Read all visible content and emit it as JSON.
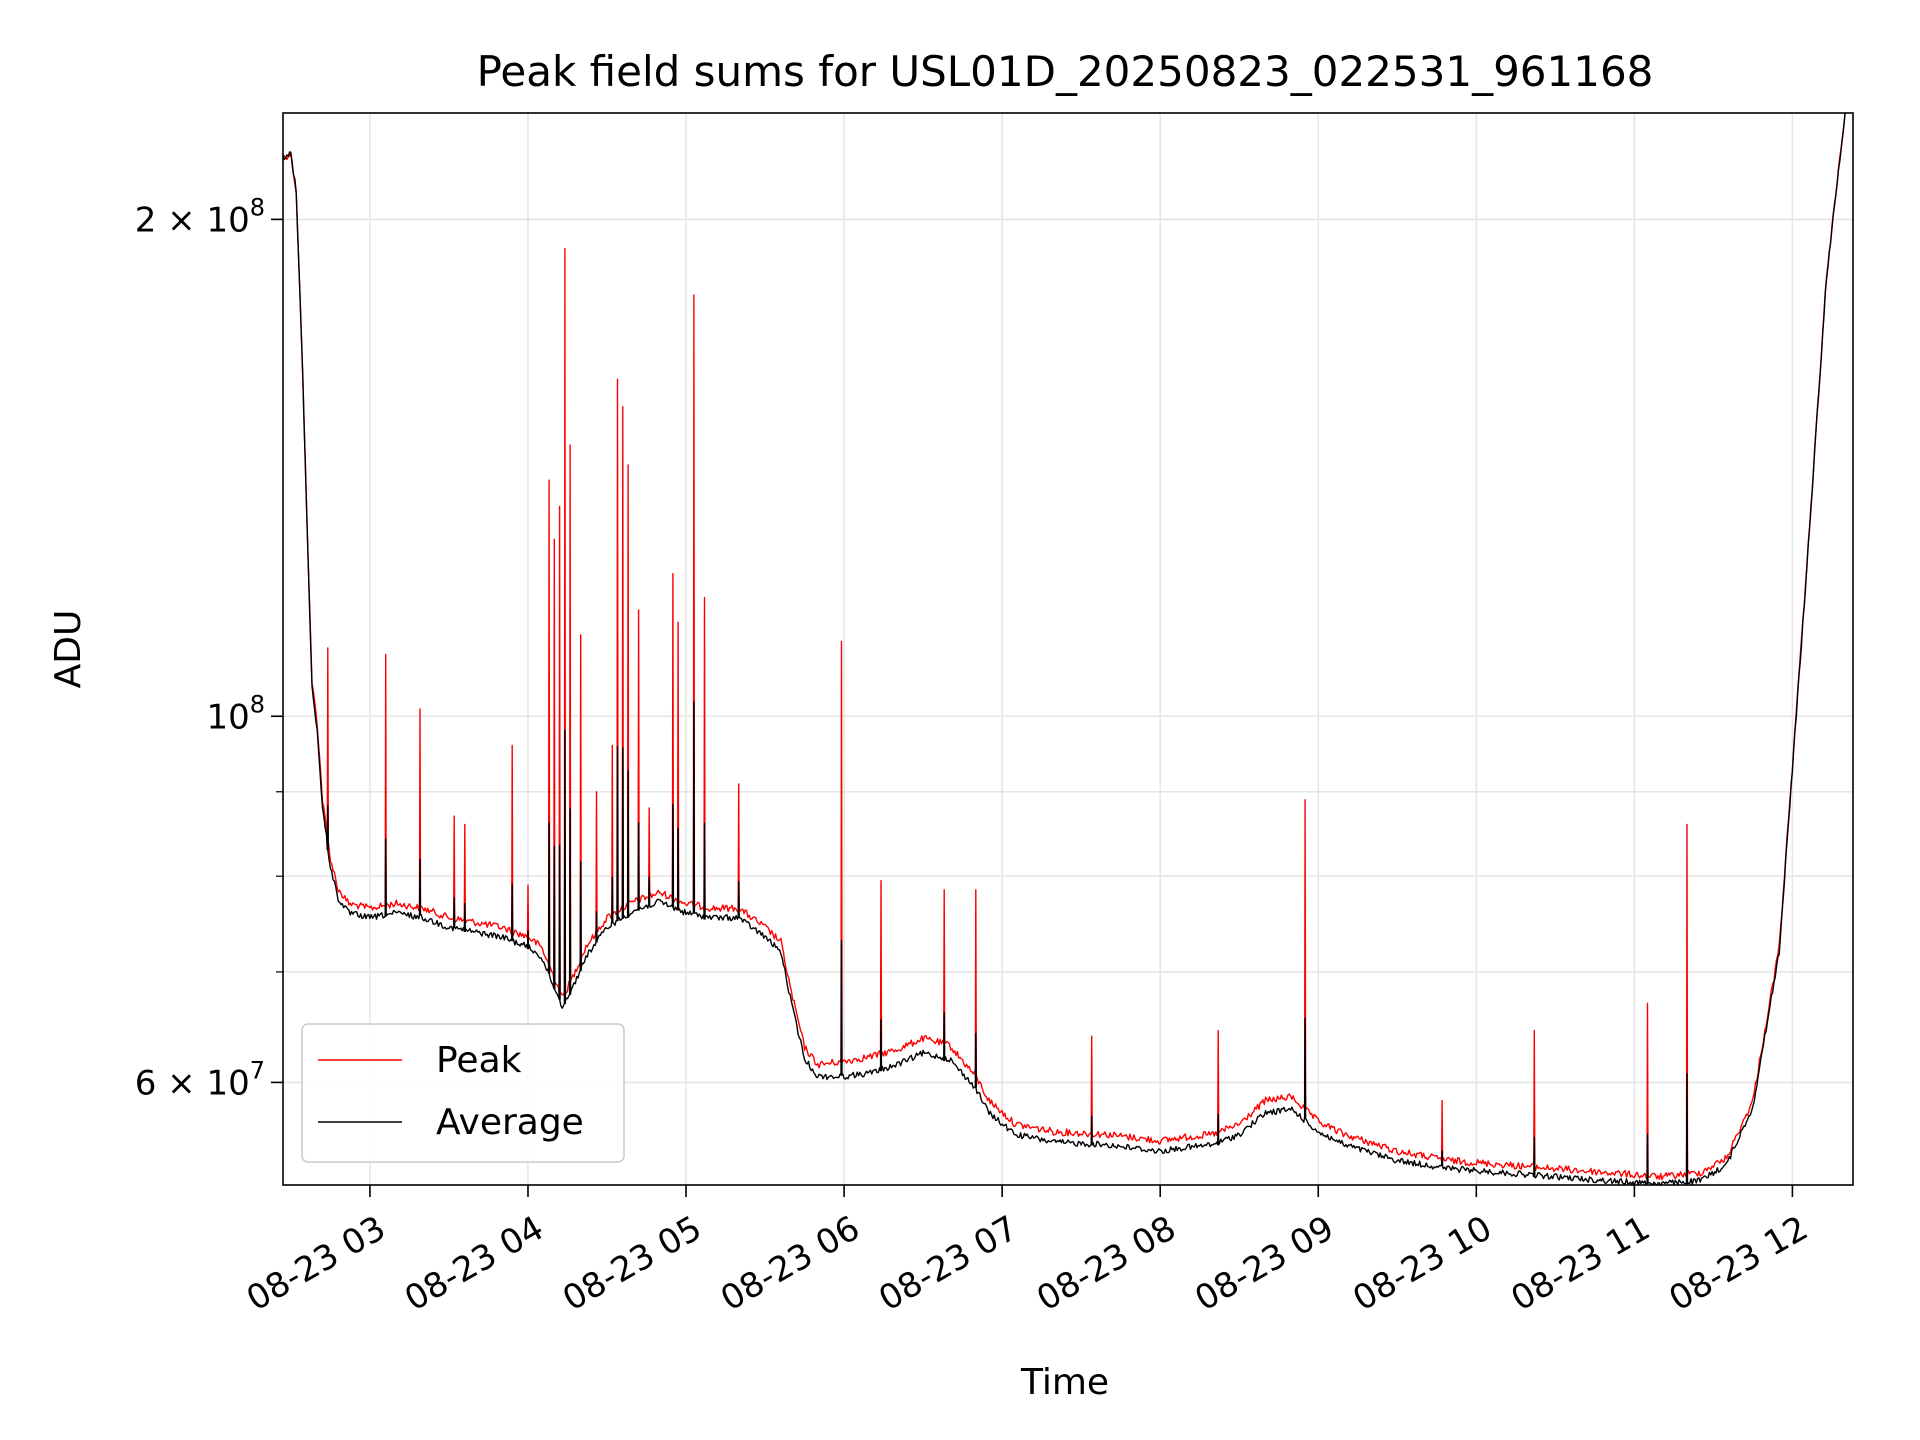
{
  "chart_data": {
    "type": "line",
    "title": "Peak field sums for USL01D_20250823_022531_961168",
    "xlabel": "Time",
    "ylabel": "ADU",
    "yscale": "log",
    "xlim": [
      "2025-08-23 02:27",
      "2025-08-23 12:23"
    ],
    "ylim": [
      52000000,
      232000000
    ],
    "grid": true,
    "legend": {
      "placement": "lower-left",
      "entries": [
        "Peak",
        "Average"
      ]
    },
    "x_ticks": [
      {
        "t": "2025-08-23 03:00",
        "label": "08-23 03"
      },
      {
        "t": "2025-08-23 04:00",
        "label": "08-23 04"
      },
      {
        "t": "2025-08-23 05:00",
        "label": "08-23 05"
      },
      {
        "t": "2025-08-23 06:00",
        "label": "08-23 06"
      },
      {
        "t": "2025-08-23 07:00",
        "label": "08-23 07"
      },
      {
        "t": "2025-08-23 08:00",
        "label": "08-23 08"
      },
      {
        "t": "2025-08-23 09:00",
        "label": "08-23 09"
      },
      {
        "t": "2025-08-23 10:00",
        "label": "08-23 10"
      },
      {
        "t": "2025-08-23 11:00",
        "label": "08-23 11"
      },
      {
        "t": "2025-08-23 12:00",
        "label": "08-23 12"
      }
    ],
    "y_major_ticks": [
      {
        "value": 100000000,
        "base": "10",
        "exp": "8"
      },
      {
        "value": 200000000,
        "mant": "2",
        "base": "10",
        "exp": "8"
      },
      {
        "value": 60000000,
        "mant": "6",
        "base": "10",
        "exp": "7"
      }
    ],
    "y_minor_ticks": [
      60000000,
      70000000,
      80000000,
      90000000,
      200000000
    ],
    "colors": {
      "Peak": "#ff0000",
      "Average": "#000000"
    },
    "series": [
      {
        "name": "Average",
        "color": "#000000",
        "points": [
          [
            "2025-08-23 02:27",
            218000000
          ],
          [
            "2025-08-23 02:30",
            219000000
          ],
          [
            "2025-08-23 02:32",
            208000000
          ],
          [
            "2025-08-23 02:34",
            170000000
          ],
          [
            "2025-08-23 02:37",
            118000000
          ],
          [
            "2025-08-23 02:38",
            104000000
          ],
          [
            "2025-08-23 02:40",
            98000000
          ],
          [
            "2025-08-23 02:42",
            88000000
          ],
          [
            "2025-08-23 02:45",
            81000000
          ],
          [
            "2025-08-23 02:48",
            77500000
          ],
          [
            "2025-08-23 02:52",
            76000000
          ],
          [
            "2025-08-23 03:00",
            75500000
          ],
          [
            "2025-08-23 03:10",
            76000000
          ],
          [
            "2025-08-23 03:20",
            75500000
          ],
          [
            "2025-08-23 03:30",
            74500000
          ],
          [
            "2025-08-23 03:40",
            74000000
          ],
          [
            "2025-08-23 03:50",
            73500000
          ],
          [
            "2025-08-23 04:00",
            72500000
          ],
          [
            "2025-08-23 04:05",
            71500000
          ],
          [
            "2025-08-23 04:10",
            68500000
          ],
          [
            "2025-08-23 04:13",
            66700000
          ],
          [
            "2025-08-23 04:17",
            68500000
          ],
          [
            "2025-08-23 04:22",
            71500000
          ],
          [
            "2025-08-23 04:30",
            74500000
          ],
          [
            "2025-08-23 04:40",
            76200000
          ],
          [
            "2025-08-23 04:50",
            77200000
          ],
          [
            "2025-08-23 05:00",
            76000000
          ],
          [
            "2025-08-23 05:10",
            75500000
          ],
          [
            "2025-08-23 05:20",
            75500000
          ],
          [
            "2025-08-23 05:30",
            73500000
          ],
          [
            "2025-08-23 05:36",
            72000000
          ],
          [
            "2025-08-23 05:40",
            67000000
          ],
          [
            "2025-08-23 05:45",
            62000000
          ],
          [
            "2025-08-23 05:50",
            60500000
          ],
          [
            "2025-08-23 06:00",
            60500000
          ],
          [
            "2025-08-23 06:10",
            60800000
          ],
          [
            "2025-08-23 06:20",
            61500000
          ],
          [
            "2025-08-23 06:30",
            62500000
          ],
          [
            "2025-08-23 06:40",
            62000000
          ],
          [
            "2025-08-23 06:50",
            59500000
          ],
          [
            "2025-08-23 06:55",
            57500000
          ],
          [
            "2025-08-23 07:05",
            55800000
          ],
          [
            "2025-08-23 07:20",
            55200000
          ],
          [
            "2025-08-23 07:40",
            55000000
          ],
          [
            "2025-08-23 08:00",
            54500000
          ],
          [
            "2025-08-23 08:10",
            54800000
          ],
          [
            "2025-08-23 08:20",
            55000000
          ],
          [
            "2025-08-23 08:30",
            55800000
          ],
          [
            "2025-08-23 08:40",
            57500000
          ],
          [
            "2025-08-23 08:50",
            57800000
          ],
          [
            "2025-08-23 09:00",
            56000000
          ],
          [
            "2025-08-23 09:10",
            55000000
          ],
          [
            "2025-08-23 09:30",
            53800000
          ],
          [
            "2025-08-23 09:50",
            53200000
          ],
          [
            "2025-08-23 10:10",
            52900000
          ],
          [
            "2025-08-23 10:30",
            52600000
          ],
          [
            "2025-08-23 10:50",
            52300000
          ],
          [
            "2025-08-23 11:10",
            52100000
          ],
          [
            "2025-08-23 11:25",
            52300000
          ],
          [
            "2025-08-23 11:35",
            53500000
          ],
          [
            "2025-08-23 11:45",
            58000000
          ],
          [
            "2025-08-23 11:55",
            72000000
          ],
          [
            "2025-08-23 12:05",
            120000000
          ],
          [
            "2025-08-23 12:13",
            185000000
          ],
          [
            "2025-08-23 12:20",
            232000000
          ]
        ]
      },
      {
        "name": "Peak",
        "color": "#ff0000",
        "points": [
          [
            "2025-08-23 02:27",
            218000000
          ],
          [
            "2025-08-23 02:30",
            219000000
          ],
          [
            "2025-08-23 02:32",
            208000000
          ],
          [
            "2025-08-23 02:34",
            170000000
          ],
          [
            "2025-08-23 02:37",
            118000000
          ],
          [
            "2025-08-23 02:38",
            105000000
          ],
          [
            "2025-08-23 02:40",
            99000000
          ],
          [
            "2025-08-23 02:42",
            89000000
          ],
          [
            "2025-08-23 02:45",
            82000000
          ],
          [
            "2025-08-23 02:48",
            78500000
          ],
          [
            "2025-08-23 02:52",
            77000000
          ],
          [
            "2025-08-23 03:00",
            76500000
          ],
          [
            "2025-08-23 03:10",
            77000000
          ],
          [
            "2025-08-23 03:20",
            76500000
          ],
          [
            "2025-08-23 03:30",
            75500000
          ],
          [
            "2025-08-23 03:40",
            75000000
          ],
          [
            "2025-08-23 03:50",
            74500000
          ],
          [
            "2025-08-23 04:00",
            73500000
          ],
          [
            "2025-08-23 04:05",
            72500000
          ],
          [
            "2025-08-23 04:10",
            69500000
          ],
          [
            "2025-08-23 04:13",
            67500000
          ],
          [
            "2025-08-23 04:17",
            69500000
          ],
          [
            "2025-08-23 04:22",
            72500000
          ],
          [
            "2025-08-23 04:30",
            75500000
          ],
          [
            "2025-08-23 04:40",
            77200000
          ],
          [
            "2025-08-23 04:50",
            78200000
          ],
          [
            "2025-08-23 05:00",
            77000000
          ],
          [
            "2025-08-23 05:10",
            76500000
          ],
          [
            "2025-08-23 05:20",
            76500000
          ],
          [
            "2025-08-23 05:30",
            74500000
          ],
          [
            "2025-08-23 05:36",
            73000000
          ],
          [
            "2025-08-23 05:40",
            68000000
          ],
          [
            "2025-08-23 05:45",
            63000000
          ],
          [
            "2025-08-23 05:50",
            61500000
          ],
          [
            "2025-08-23 06:00",
            61800000
          ],
          [
            "2025-08-23 06:10",
            62200000
          ],
          [
            "2025-08-23 06:20",
            62800000
          ],
          [
            "2025-08-23 06:30",
            63800000
          ],
          [
            "2025-08-23 06:40",
            63200000
          ],
          [
            "2025-08-23 06:50",
            60500000
          ],
          [
            "2025-08-23 06:55",
            58500000
          ],
          [
            "2025-08-23 07:05",
            56600000
          ],
          [
            "2025-08-23 07:20",
            56000000
          ],
          [
            "2025-08-23 07:40",
            55800000
          ],
          [
            "2025-08-23 08:00",
            55300000
          ],
          [
            "2025-08-23 08:10",
            55600000
          ],
          [
            "2025-08-23 08:20",
            55800000
          ],
          [
            "2025-08-23 08:30",
            56600000
          ],
          [
            "2025-08-23 08:40",
            58500000
          ],
          [
            "2025-08-23 08:50",
            58800000
          ],
          [
            "2025-08-23 09:00",
            56800000
          ],
          [
            "2025-08-23 09:10",
            55800000
          ],
          [
            "2025-08-23 09:30",
            54500000
          ],
          [
            "2025-08-23 09:50",
            53800000
          ],
          [
            "2025-08-23 10:10",
            53500000
          ],
          [
            "2025-08-23 10:30",
            53200000
          ],
          [
            "2025-08-23 10:50",
            52900000
          ],
          [
            "2025-08-23 11:10",
            52600000
          ],
          [
            "2025-08-23 11:25",
            52900000
          ],
          [
            "2025-08-23 11:35",
            54000000
          ],
          [
            "2025-08-23 11:45",
            58500000
          ],
          [
            "2025-08-23 11:55",
            72500000
          ],
          [
            "2025-08-23 12:05",
            120000000
          ],
          [
            "2025-08-23 12:13",
            185000000
          ],
          [
            "2025-08-23 12:20",
            232000000
          ]
        ],
        "spikes": [
          [
            "2025-08-23 02:44",
            110000000
          ],
          [
            "2025-08-23 03:06",
            109000000
          ],
          [
            "2025-08-23 03:19",
            101000000
          ],
          [
            "2025-08-23 03:32",
            87000000
          ],
          [
            "2025-08-23 03:36",
            86000000
          ],
          [
            "2025-08-23 03:54",
            96000000
          ],
          [
            "2025-08-23 04:00",
            79000000
          ],
          [
            "2025-08-23 04:08",
            139000000
          ],
          [
            "2025-08-23 04:10",
            128000000
          ],
          [
            "2025-08-23 04:12",
            134000000
          ],
          [
            "2025-08-23 04:14",
            192000000
          ],
          [
            "2025-08-23 04:16",
            146000000
          ],
          [
            "2025-08-23 04:20",
            112000000
          ],
          [
            "2025-08-23 04:26",
            90000000
          ],
          [
            "2025-08-23 04:32",
            96000000
          ],
          [
            "2025-08-23 04:34",
            160000000
          ],
          [
            "2025-08-23 04:36",
            154000000
          ],
          [
            "2025-08-23 04:38",
            142000000
          ],
          [
            "2025-08-23 04:42",
            116000000
          ],
          [
            "2025-08-23 04:46",
            88000000
          ],
          [
            "2025-08-23 04:55",
            122000000
          ],
          [
            "2025-08-23 04:57",
            114000000
          ],
          [
            "2025-08-23 05:03",
            180000000
          ],
          [
            "2025-08-23 05:07",
            118000000
          ],
          [
            "2025-08-23 05:20",
            91000000
          ],
          [
            "2025-08-23 05:59",
            111000000
          ],
          [
            "2025-08-23 06:14",
            79500000
          ],
          [
            "2025-08-23 06:38",
            78500000
          ],
          [
            "2025-08-23 06:50",
            78500000
          ],
          [
            "2025-08-23 07:34",
            64000000
          ],
          [
            "2025-08-23 08:22",
            64500000
          ],
          [
            "2025-08-23 08:55",
            89000000
          ],
          [
            "2025-08-23 09:47",
            58500000
          ],
          [
            "2025-08-23 10:22",
            64500000
          ],
          [
            "2025-08-23 11:05",
            67000000
          ],
          [
            "2025-08-23 11:20",
            86000000
          ]
        ]
      }
    ]
  }
}
